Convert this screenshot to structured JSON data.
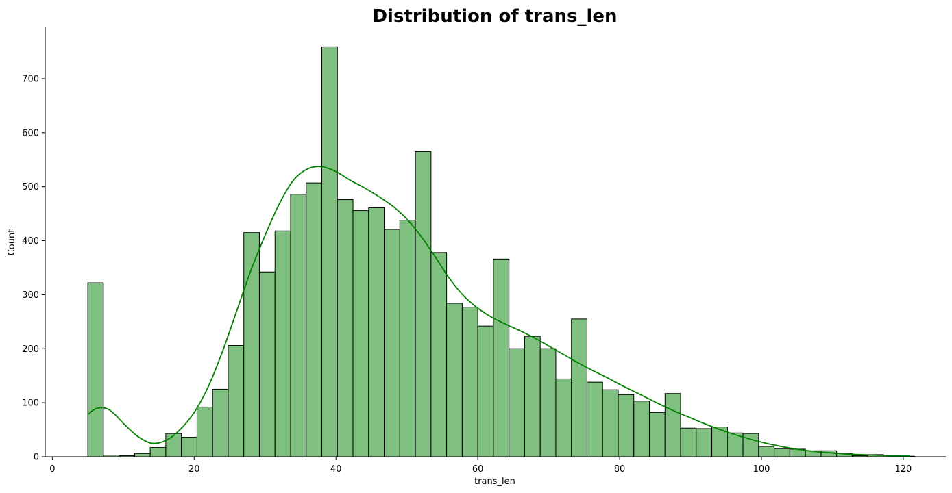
{
  "chart_data": {
    "type": "bar",
    "subtype": "histogram",
    "title": "Distribution of trans_len",
    "xlabel": "trans_len",
    "ylabel": "Count",
    "xlim": [
      -1,
      126
    ],
    "ylim": [
      0,
      795
    ],
    "xticks": [
      0,
      20,
      40,
      60,
      80,
      100,
      120
    ],
    "yticks": [
      0,
      100,
      200,
      300,
      400,
      500,
      600,
      700
    ],
    "bin_start": 5,
    "bin_width": 2.2,
    "counts": [
      322,
      3,
      2,
      6,
      17,
      43,
      36,
      92,
      125,
      206,
      415,
      342,
      418,
      486,
      507,
      759,
      476,
      456,
      461,
      421,
      438,
      565,
      378,
      284,
      277,
      242,
      366,
      200,
      223,
      200,
      144,
      255,
      138,
      124,
      115,
      103,
      82,
      117,
      53,
      52,
      55,
      44,
      43,
      19,
      15,
      14,
      11,
      11,
      6,
      2,
      4,
      2,
      1
    ],
    "kde": {
      "x": [
        5,
        6,
        7,
        8,
        9,
        10,
        12,
        14,
        16,
        18,
        20,
        22,
        24,
        26,
        28,
        30,
        32,
        34,
        36,
        38,
        40,
        42,
        44,
        46,
        48,
        50,
        52,
        54,
        56,
        58,
        60,
        62,
        64,
        66,
        68,
        70,
        72,
        74,
        76,
        78,
        80,
        82,
        84,
        86,
        88,
        90,
        92,
        94,
        96,
        98,
        100,
        102,
        104,
        106,
        108,
        110,
        112,
        114,
        116,
        118,
        120,
        121
      ],
      "y": [
        78,
        88,
        91,
        87,
        76,
        62,
        38,
        25,
        30,
        50,
        82,
        130,
        195,
        270,
        345,
        410,
        468,
        512,
        533,
        537,
        528,
        512,
        498,
        482,
        464,
        440,
        408,
        370,
        330,
        298,
        275,
        258,
        245,
        233,
        220,
        205,
        190,
        175,
        161,
        148,
        134,
        121,
        108,
        95,
        83,
        72,
        61,
        51,
        42,
        34,
        27,
        21,
        16,
        12,
        9,
        7,
        5,
        4,
        3,
        2,
        1.5,
        1.2
      ]
    },
    "colors": {
      "bar_fill": "#7fbf7f",
      "bar_edge": "#000000",
      "kde_line": "#008000"
    },
    "grid": false
  }
}
